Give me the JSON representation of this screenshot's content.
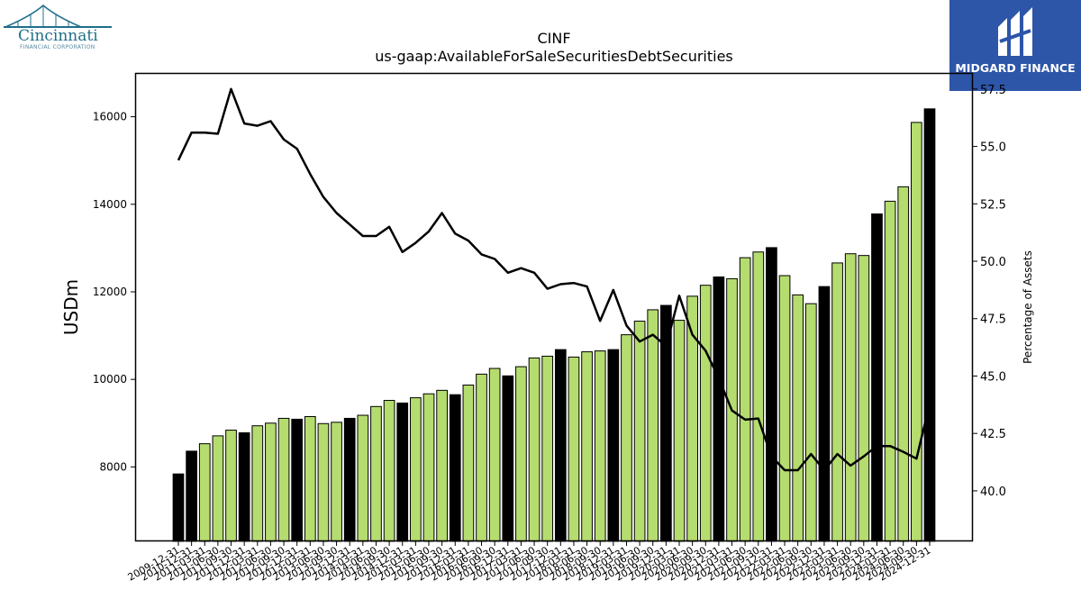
{
  "brand_left": {
    "name": "Cincinnati",
    "subtitle": "FINANCIAL CORPORATION"
  },
  "brand_right": {
    "name": "MIDGARD FINANCE",
    "bg_color": "#2d55a8"
  },
  "chart_data": {
    "type": "bar",
    "title": "CINF",
    "subtitle": "us-gaap:AvailableForSaleSecuritiesDebtSecurities",
    "ylabel": "USDm",
    "y2label": "Percentage of Assets",
    "ylim": [
      6300,
      17000
    ],
    "y2lim": [
      37.8,
      58.2
    ],
    "yticks": [
      8000,
      10000,
      12000,
      14000,
      16000
    ],
    "y2ticks": [
      "40.0",
      "42.5",
      "45.0",
      "47.5",
      "50.0",
      "52.5",
      "55.0",
      "57.5"
    ],
    "colors": {
      "q4_bar": "#000000",
      "quarter_bar": "#b5dc6f",
      "line": "#000000"
    },
    "categories": [
      "2009-12-31",
      "2010-12-31",
      "2011-03-31",
      "2011-06-30",
      "2011-09-30",
      "2011-12-31",
      "2012-03-31",
      "2012-06-30",
      "2012-09-30",
      "2012-12-31",
      "2013-03-31",
      "2013-06-30",
      "2013-09-30",
      "2013-12-31",
      "2014-03-31",
      "2014-06-30",
      "2014-09-30",
      "2014-12-31",
      "2015-03-31",
      "2015-06-30",
      "2015-09-30",
      "2015-12-31",
      "2016-03-31",
      "2016-06-30",
      "2016-09-30",
      "2016-12-31",
      "2017-03-31",
      "2017-06-30",
      "2017-09-30",
      "2017-12-31",
      "2018-03-31",
      "2018-06-30",
      "2018-09-30",
      "2018-12-31",
      "2019-03-31",
      "2019-06-30",
      "2019-09-30",
      "2019-12-31",
      "2020-03-31",
      "2020-06-30",
      "2020-09-30",
      "2020-12-31",
      "2021-03-31",
      "2021-06-30",
      "2021-09-30",
      "2021-12-31",
      "2022-03-31",
      "2022-06-30",
      "2022-09-30",
      "2022-12-31",
      "2023-03-31",
      "2023-06-30",
      "2023-09-30",
      "2023-12-31",
      "2024-03-31",
      "2024-06-30",
      "2024-09-30",
      "2024-12-31"
    ],
    "series": [
      {
        "type": "bar",
        "values": [
          7840,
          8360,
          8530,
          8710,
          8840,
          8780,
          8940,
          9000,
          9110,
          9090,
          9150,
          8990,
          9020,
          9110,
          9180,
          9380,
          9520,
          9460,
          9580,
          9670,
          9750,
          9650,
          9870,
          10120,
          10250,
          10080,
          10290,
          10490,
          10530,
          10680,
          10510,
          10630,
          10650,
          10680,
          11020,
          11330,
          11590,
          11690,
          11350,
          11900,
          12150,
          12340,
          12300,
          12780,
          12910,
          13010,
          12370,
          11930,
          11730,
          12120,
          12660,
          12870,
          12830,
          13780,
          14070,
          14400,
          15870,
          16180
        ]
      },
      {
        "type": "line",
        "axis": "right",
        "values": [
          54.4,
          55.6,
          55.6,
          55.55,
          57.5,
          56.0,
          55.9,
          56.1,
          55.3,
          54.9,
          53.8,
          52.8,
          52.1,
          51.6,
          51.1,
          51.1,
          51.5,
          50.4,
          50.8,
          51.3,
          52.1,
          51.2,
          50.9,
          50.3,
          50.1,
          49.5,
          49.7,
          49.5,
          48.8,
          49.0,
          49.05,
          48.9,
          47.4,
          48.75,
          47.2,
          46.5,
          46.8,
          46.3,
          48.5,
          46.8,
          46.1,
          44.9,
          43.5,
          43.1,
          43.15,
          41.5,
          40.9,
          40.9,
          41.6,
          40.9,
          41.6,
          41.1,
          41.5,
          41.95,
          41.95,
          41.7,
          41.4,
          43.8
        ]
      }
    ]
  }
}
